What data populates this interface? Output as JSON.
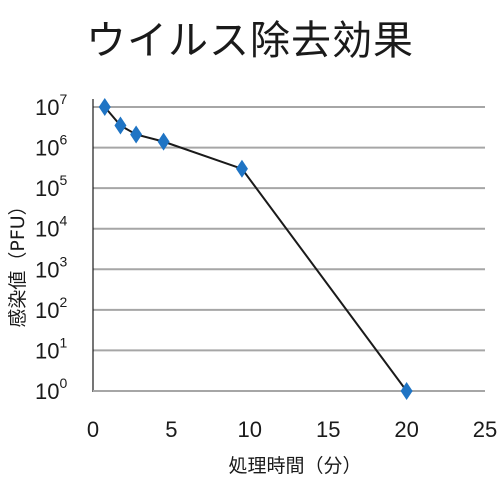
{
  "chart_data": {
    "type": "line",
    "title": "ウイルス除去効果",
    "xlabel": "処理時間（分）",
    "ylabel": "感染値（PFU）",
    "scale_y": "log10",
    "ylim": [
      1,
      10000000
    ],
    "xlim": [
      0,
      25
    ],
    "grid": true,
    "yticks": [
      {
        "base": "10",
        "exp": "0",
        "value": 1
      },
      {
        "base": "10",
        "exp": "1",
        "value": 10
      },
      {
        "base": "10",
        "exp": "2",
        "value": 100
      },
      {
        "base": "10",
        "exp": "3",
        "value": 1000
      },
      {
        "base": "10",
        "exp": "4",
        "value": 10000
      },
      {
        "base": "10",
        "exp": "5",
        "value": 100000
      },
      {
        "base": "10",
        "exp": "6",
        "value": 1000000
      },
      {
        "base": "10",
        "exp": "7",
        "value": 10000000
      }
    ],
    "xticks": [
      "0",
      "5",
      "10",
      "15",
      "20",
      "25"
    ],
    "series": [
      {
        "x": [
          0.75,
          1.75,
          2.75,
          4.5,
          9.5,
          20
        ],
        "y": [
          10000000,
          3500000,
          2100000,
          1400000,
          300000,
          1
        ],
        "line_color": "#1a1a1a",
        "marker": "diamond",
        "marker_color": "#1f74c4"
      }
    ],
    "grid_color": "#a6a6a6"
  }
}
